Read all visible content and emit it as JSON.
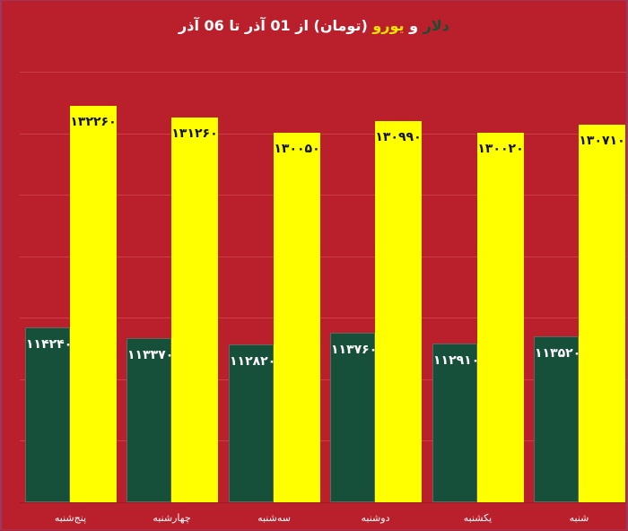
{
  "chart_data": {
    "type": "bar",
    "title": "دلار و یورو (تومان) از 01 آذر تا 06 آذر",
    "title_parts": {
      "dollar": "دلار",
      "and1": " و ",
      "euro": "یورو",
      "rest": " (تومان) از 01 آذر تا 06 آذر"
    },
    "categories": [
      "پنج‌شنبه",
      "چهارشنبه",
      "سه‌شنبه",
      "دوشنبه",
      "یکشنبه",
      "شنبه"
    ],
    "series": [
      {
        "name": "دلار",
        "color": "#17503A",
        "values": [
          114240,
          113370,
          112820,
          113760,
          112910,
          113520
        ],
        "labels": [
          "۱۱۴۲۴۰",
          "۱۱۳۳۷۰",
          "۱۱۲۸۲۰",
          "۱۱۳۷۶۰",
          "۱۱۲۹۱۰",
          "۱۱۳۵۲۰"
        ]
      },
      {
        "name": "یورو",
        "color": "#FFFF00",
        "values": [
          132260,
          131260,
          130050,
          130990,
          130020,
          130710
        ],
        "labels": [
          "۱۳۲۲۶۰",
          "۱۳۱۲۶۰",
          "۱۳۰۰۵۰",
          "۱۳۰۹۹۰",
          "۱۳۰۰۲۰",
          "۱۳۰۷۱۰"
        ]
      }
    ],
    "xlabel": "",
    "ylabel": "",
    "ylim": [
      100000,
      135000
    ],
    "ytick_step": 5000,
    "grid": true,
    "show_y_axis_labels": false,
    "legend": "none (colors encoded in title)",
    "background_color": "#B9202B"
  }
}
